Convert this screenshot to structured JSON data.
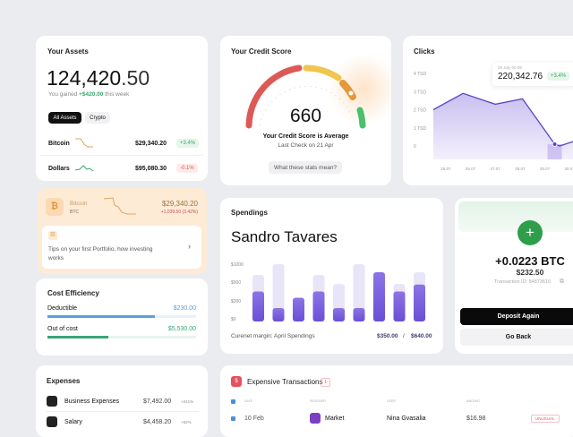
{
  "assets": {
    "title": "Your Assets",
    "amount_int": "124,420",
    "amount_dec": ".50",
    "gain_prefix": "You gained ",
    "gain_value": "+$420.00",
    "gain_suffix": " this week",
    "tabs": [
      {
        "label": "All Assets",
        "active": true
      },
      {
        "label": "Crypto",
        "active": false
      }
    ],
    "rows": [
      {
        "name": "Bitcoin",
        "value": "$29,340.20",
        "change": "+3.4%",
        "trend": "down",
        "color": "#e6a15a"
      },
      {
        "name": "Dollars",
        "value": "$95,080.30",
        "change": "-0.1%",
        "trend": "flat",
        "color": "#3aa86b"
      }
    ]
  },
  "btc": {
    "name": "Bitcoin",
    "symbol": "BTC",
    "value": "$29,340.20",
    "change": "+1,039.50 (3.42%)",
    "tip": "Tips on your first Portfolio, how investing works"
  },
  "cost": {
    "title": "Cost Efficiency",
    "items": [
      {
        "label": "Deductible",
        "value": "$230.00",
        "fill": 0.72,
        "color": "#5aa0dc"
      },
      {
        "label": "Out of cost",
        "value": "$5,530.00",
        "fill": 0.41,
        "color": "#3aa477"
      }
    ]
  },
  "expenses": {
    "title": "Expenses",
    "rows": [
      {
        "name": "Business Expenses",
        "value": "$7,492.00",
        "change": "+241%"
      },
      {
        "name": "Salary",
        "value": "$4,458.20",
        "change": "+62%"
      }
    ]
  },
  "credit": {
    "title": "Your Credit Score",
    "score": "660",
    "status": "Your Credit Score is Average",
    "last_check": "Last Check on 21 Apr",
    "button": "What these stats mean?",
    "colors": {
      "low": "#dc5a55",
      "mid": "#f0c64e",
      "avg": "#e49a3a",
      "high": "#4cc06a"
    }
  },
  "clicks": {
    "title": "Clicks",
    "tooltip": {
      "date": "29 July 00:09",
      "value": "220,342.76",
      "change": "+3.4%"
    }
  },
  "spendings": {
    "title": "Spendings",
    "name": "Sandro Tavares",
    "margin_label": "Curenet margin: April Spendings",
    "current": "$350.00",
    "separator": "/",
    "total": "$640.00"
  },
  "deposit": {
    "amount": "+0.0223 BTC",
    "usd": "$232.50",
    "transaction": "Transaction ID: 84873610",
    "primary": "Deposit Again",
    "secondary": "Go Back"
  },
  "transactions": {
    "title": "Expensive Transactions",
    "count": "1",
    "headers": [
      "DATE",
      "RECEIVER",
      "USER",
      "AMOUNT"
    ],
    "rows": [
      {
        "date": "10 Feb",
        "receiver": "Market",
        "user": "Nina Gvasalia",
        "amount": "$16.98",
        "badge": "UNUSUAL"
      }
    ]
  },
  "chart_data": [
    {
      "type": "area",
      "title": "Clicks",
      "x_ticks": [
        "25.07",
        "26.07",
        "27.07",
        "28.07",
        "29.07",
        "30.07"
      ],
      "y_ticks": [
        "0",
        "1 TSD",
        "2 TSD",
        "3 TSD",
        "4 TSD"
      ],
      "ylim": [
        0,
        4
      ],
      "xlim": [
        24.5,
        30.5
      ],
      "points": [
        {
          "x": 24.5,
          "y": 2.0
        },
        {
          "x": 25.7,
          "y": 2.9
        },
        {
          "x": 27.0,
          "y": 2.3
        },
        {
          "x": 28.1,
          "y": 2.6
        },
        {
          "x": 29.4,
          "y": 0.1
        },
        {
          "x": 29.6,
          "y": 0.0
        },
        {
          "x": 30.5,
          "y": 0.4
        }
      ],
      "highlight_x": 29.4,
      "color": "#5b45c4"
    },
    {
      "type": "bar",
      "title": "Spendings",
      "y_ticks": [
        {
          "label": "$1000",
          "v": 1000
        },
        {
          "label": "$500",
          "v": 500
        },
        {
          "label": "$200",
          "v": 200
        },
        {
          "label": "$0",
          "v": 0
        }
      ],
      "series": [
        {
          "values": [
            700,
            1000,
            0,
            700,
            470,
            1000,
            775,
            470,
            775
          ]
        },
        {
          "values": [
            350,
            120,
            250,
            350,
            120,
            120,
            775,
            350,
            460
          ]
        }
      ],
      "color": "#6a4fd6"
    }
  ]
}
